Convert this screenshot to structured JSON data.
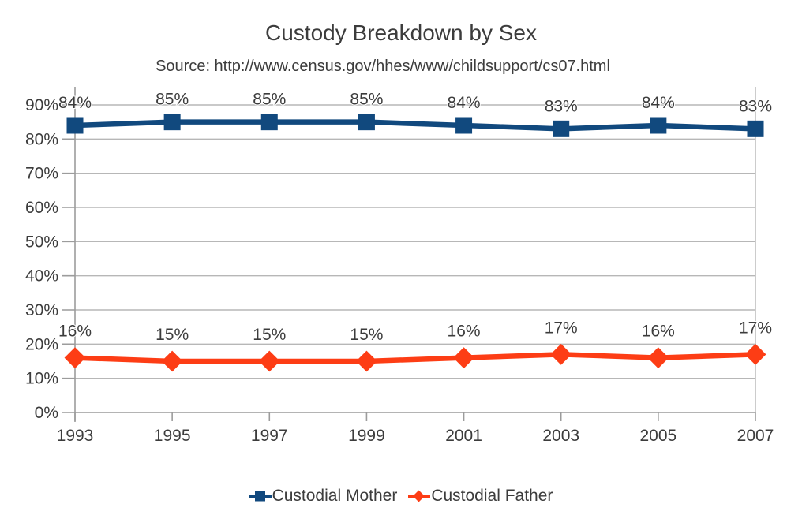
{
  "chart_data": {
    "type": "line",
    "title": "Custody Breakdown by Sex",
    "subtitle": "Source: http://www.census.gov/hhes/www/childsupport/cs07.html",
    "categories": [
      "1993",
      "1995",
      "1997",
      "1999",
      "2001",
      "2003",
      "2005",
      "2007"
    ],
    "series": [
      {
        "name": "Custodial Mother",
        "values": [
          84,
          85,
          85,
          85,
          84,
          83,
          84,
          83
        ],
        "color": "#11497e",
        "marker": "square"
      },
      {
        "name": "Custodial Father",
        "values": [
          16,
          15,
          15,
          15,
          16,
          17,
          16,
          17
        ],
        "color": "#fd3d15",
        "marker": "diamond"
      }
    ],
    "ylim": [
      0,
      90
    ],
    "ytick_step": 10,
    "ytick_labels": [
      "0%",
      "10%",
      "20%",
      "30%",
      "40%",
      "50%",
      "60%",
      "70%",
      "80%",
      "90%"
    ],
    "value_suffix": "%",
    "grid": true,
    "legend_position": "bottom"
  },
  "colors": {
    "grid": "#b7b7b7",
    "axis": "#9c9c9c",
    "text": "#3c3c3c"
  }
}
